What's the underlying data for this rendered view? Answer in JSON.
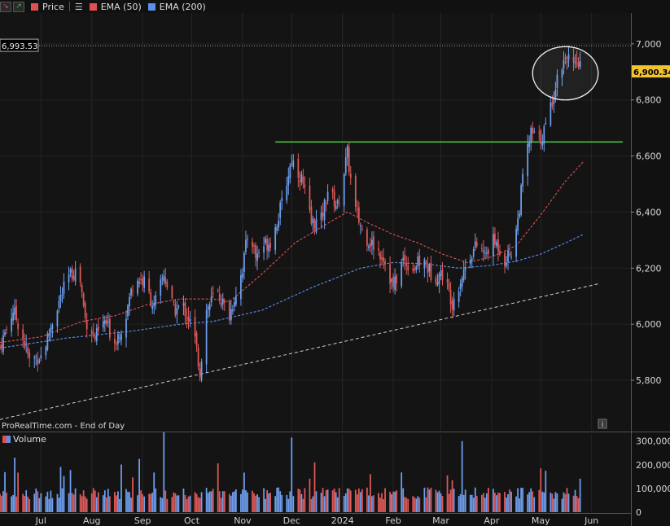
{
  "toolbar": {
    "price_label": "Price",
    "ema50_label": "EMA (50)",
    "ema200_label": "EMA (200)",
    "ema50_color": "#e05050",
    "ema200_color": "#5b8fe8"
  },
  "watermark": "ProRealTime.com - End of Day",
  "volume_label": "Volume",
  "info_icon": "info-icon",
  "colors": {
    "up": "#6f9ff0",
    "down": "#e05a5a",
    "resistance": "#4cd14c",
    "background": "#111111"
  },
  "chart_data": {
    "type": "candlestick",
    "price_axis": {
      "range": [
        5620,
        7110
      ],
      "ticks": [
        5800,
        6000,
        6200,
        6400,
        6600,
        6800,
        7000
      ],
      "tick_labels": [
        "5,800",
        "6,000",
        "6,200",
        "6,400",
        "6,600",
        "6,800",
        "7,000"
      ]
    },
    "volume_axis": {
      "range": [
        0,
        330000
      ],
      "ticks": [
        0,
        100000,
        200000,
        300000
      ],
      "tick_labels": [
        "0",
        "100,000",
        "200,000",
        "300,000"
      ]
    },
    "x_labels": [
      {
        "label": "Jul",
        "day": 25
      },
      {
        "label": "Aug",
        "day": 56
      },
      {
        "label": "Sep",
        "day": 87
      },
      {
        "label": "Oct",
        "day": 117
      },
      {
        "label": "Nov",
        "day": 148
      },
      {
        "label": "Dec",
        "day": 178
      },
      {
        "label": "2024",
        "day": 209
      },
      {
        "label": "Feb",
        "day": 240
      },
      {
        "label": "Mar",
        "day": 269
      },
      {
        "label": "Apr",
        "day": 300
      },
      {
        "label": "May",
        "day": 330
      },
      {
        "label": "Jun",
        "day": 361
      }
    ],
    "days_span": [
      0,
      385
    ],
    "last_price": "6,900.34",
    "last_price_value": 6900.34,
    "high_label": "6,993.53",
    "high_value": 6993.53,
    "anchors": [
      [
        0,
        5920
      ],
      [
        8,
        6050
      ],
      [
        12,
        5990
      ],
      [
        18,
        5870
      ],
      [
        26,
        5890
      ],
      [
        34,
        6050
      ],
      [
        42,
        6170
      ],
      [
        48,
        6200
      ],
      [
        52,
        6020
      ],
      [
        58,
        5950
      ],
      [
        64,
        6010
      ],
      [
        70,
        5940
      ],
      [
        76,
        6010
      ],
      [
        82,
        6170
      ],
      [
        88,
        6150
      ],
      [
        94,
        6060
      ],
      [
        100,
        6180
      ],
      [
        106,
        6050
      ],
      [
        112,
        6060
      ],
      [
        118,
        5980
      ],
      [
        122,
        5830
      ],
      [
        126,
        6050
      ],
      [
        132,
        6120
      ],
      [
        140,
        6030
      ],
      [
        148,
        6200
      ],
      [
        152,
        6350
      ],
      [
        156,
        6240
      ],
      [
        160,
        6280
      ],
      [
        166,
        6300
      ],
      [
        172,
        6430
      ],
      [
        178,
        6590
      ],
      [
        184,
        6520
      ],
      [
        190,
        6360
      ],
      [
        196,
        6370
      ],
      [
        200,
        6480
      ],
      [
        206,
        6420
      ],
      [
        212,
        6610
      ],
      [
        216,
        6420
      ],
      [
        222,
        6320
      ],
      [
        228,
        6280
      ],
      [
        234,
        6240
      ],
      [
        240,
        6130
      ],
      [
        246,
        6230
      ],
      [
        252,
        6200
      ],
      [
        258,
        6230
      ],
      [
        264,
        6170
      ],
      [
        270,
        6180
      ],
      [
        276,
        6080
      ],
      [
        280,
        6140
      ],
      [
        286,
        6240
      ],
      [
        292,
        6290
      ],
      [
        296,
        6240
      ],
      [
        300,
        6300
      ],
      [
        304,
        6280
      ],
      [
        308,
        6230
      ],
      [
        312,
        6260
      ],
      [
        316,
        6370
      ],
      [
        320,
        6570
      ],
      [
        324,
        6680
      ],
      [
        330,
        6660
      ],
      [
        334,
        6720
      ],
      [
        338,
        6830
      ],
      [
        342,
        6920
      ],
      [
        346,
        6960
      ],
      [
        350,
        6910
      ],
      [
        354,
        6930
      ],
      [
        356,
        6900
      ]
    ],
    "ema50": [
      [
        0,
        5935
      ],
      [
        25,
        5955
      ],
      [
        50,
        6010
      ],
      [
        70,
        6030
      ],
      [
        90,
        6070
      ],
      [
        110,
        6090
      ],
      [
        130,
        6090
      ],
      [
        140,
        6080
      ],
      [
        160,
        6180
      ],
      [
        180,
        6290
      ],
      [
        200,
        6360
      ],
      [
        212,
        6400
      ],
      [
        225,
        6360
      ],
      [
        240,
        6320
      ],
      [
        255,
        6290
      ],
      [
        270,
        6250
      ],
      [
        285,
        6220
      ],
      [
        300,
        6240
      ],
      [
        315,
        6280
      ],
      [
        330,
        6390
      ],
      [
        345,
        6510
      ],
      [
        356,
        6580
      ]
    ],
    "ema200": [
      [
        0,
        5915
      ],
      [
        40,
        5950
      ],
      [
        80,
        5975
      ],
      [
        110,
        6000
      ],
      [
        130,
        6010
      ],
      [
        160,
        6050
      ],
      [
        190,
        6130
      ],
      [
        220,
        6200
      ],
      [
        240,
        6220
      ],
      [
        260,
        6215
      ],
      [
        280,
        6200
      ],
      [
        300,
        6210
      ],
      [
        315,
        6225
      ],
      [
        330,
        6250
      ],
      [
        345,
        6290
      ],
      [
        356,
        6320
      ]
    ],
    "support_line": {
      "start": [
        0,
        5660
      ],
      "end": [
        366,
        6145
      ]
    },
    "resistance_line": {
      "start": [
        168,
        6650
      ],
      "end": [
        380,
        6650
      ]
    },
    "highlight_ellipse": {
      "center": [
        345,
        6895
      ],
      "radius_days": 20,
      "radius_price": 95
    },
    "volume_spikes": [
      [
        9,
        230000
      ],
      [
        85,
        225000
      ],
      [
        100,
        240000
      ],
      [
        178,
        315000
      ],
      [
        192,
        210000
      ],
      [
        282,
        300000
      ],
      [
        330,
        185000
      ]
    ]
  }
}
